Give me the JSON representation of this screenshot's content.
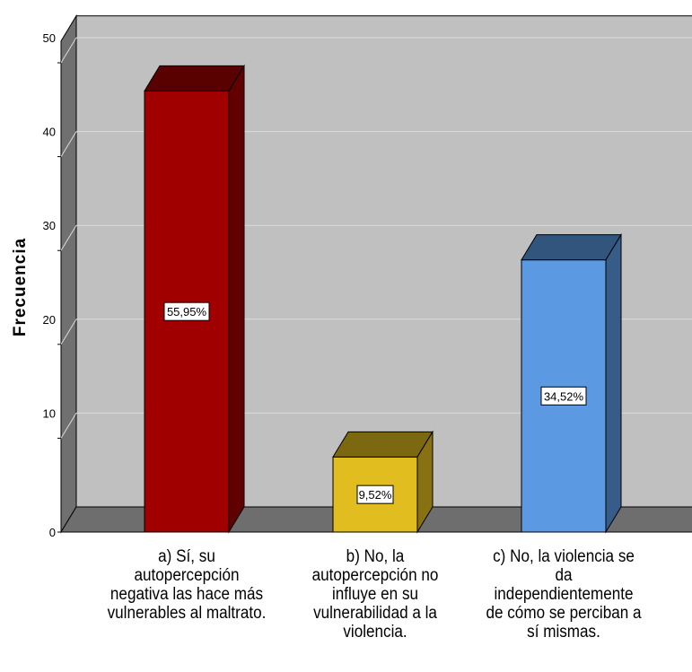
{
  "chart_data": {
    "type": "bar",
    "categories": [
      "a) Sí, su autopercepción negativa las hace más vulnerables al maltrato.",
      "b) No, la autopercepción no influye en su vulnerabilidad a la violencia.",
      "c) No, la violencia se da independientemente de cómo se perciban a sí mismas."
    ],
    "values": [
      47,
      8,
      29
    ],
    "data_labels": [
      "55,95%",
      "9,52%",
      "34,52%"
    ],
    "colors": [
      "#a10000",
      "#e1bd1f",
      "#5b9ae3"
    ],
    "ylabel": "Frecuencia",
    "ylim": [
      0,
      55
    ],
    "yticks": [
      0,
      10,
      20,
      30,
      40,
      50
    ],
    "grid": true,
    "three_d": true
  }
}
